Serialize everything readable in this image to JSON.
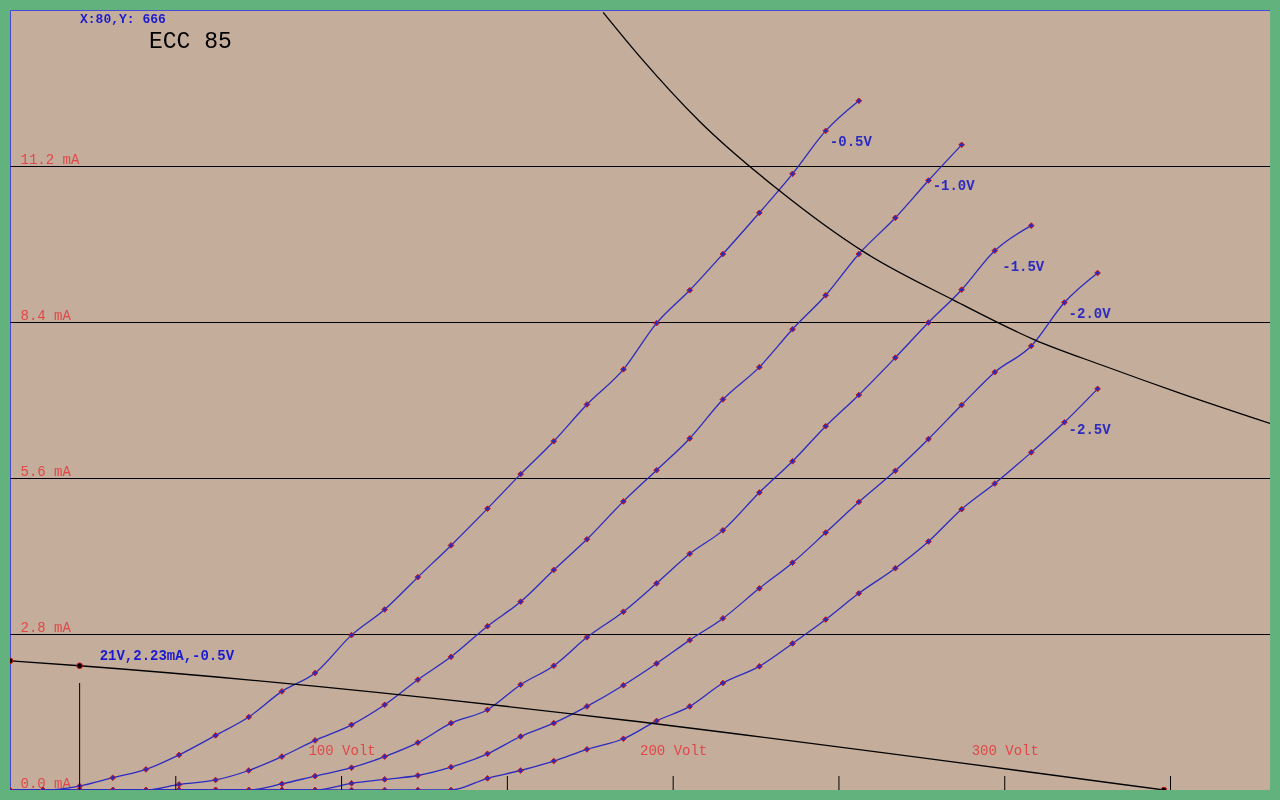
{
  "chart_data": {
    "type": "line",
    "title": "ECC 85",
    "xlim": [
      0,
      380
    ],
    "ylim": [
      0,
      14
    ],
    "xticks": [
      {
        "value": 50,
        "label": null
      },
      {
        "value": 100,
        "label": "100 Volt"
      },
      {
        "value": 150,
        "label": null
      },
      {
        "value": 200,
        "label": "200 Volt"
      },
      {
        "value": 250,
        "label": null
      },
      {
        "value": 300,
        "label": "300 Volt"
      },
      {
        "value": 350,
        "label": null
      }
    ],
    "yticks": [
      {
        "value": 0,
        "label": "0.0 mA"
      },
      {
        "value": 2.8,
        "label": "2.8 mA"
      },
      {
        "value": 5.6,
        "label": "5.6 mA"
      },
      {
        "value": 8.4,
        "label": "8.4 mA"
      },
      {
        "value": 11.2,
        "label": "11.2 mA"
      }
    ],
    "grid": "y",
    "legend": "right",
    "marker": "diamond",
    "line_style": "solid",
    "series": [
      {
        "name": "-0.5V",
        "color": "#2b2bc0",
        "x": [
          0,
          10,
          21,
          31,
          41,
          51,
          62,
          72,
          82,
          92,
          103,
          113,
          123,
          133,
          144,
          154,
          164,
          174,
          185,
          195,
          205,
          215,
          226,
          236,
          246,
          256
        ],
        "values": [
          0,
          0,
          0.07,
          0.22,
          0.37,
          0.63,
          0.98,
          1.31,
          1.77,
          2.1,
          2.78,
          3.24,
          3.82,
          4.39,
          5.05,
          5.67,
          6.26,
          6.92,
          7.55,
          8.38,
          8.97,
          9.62,
          10.36,
          11.06,
          11.83,
          12.37
        ]
      },
      {
        "name": "-1.0V",
        "color": "#2b2bc0",
        "x": [
          0,
          10,
          21,
          31,
          41,
          51,
          62,
          72,
          82,
          92,
          103,
          113,
          123,
          133,
          144,
          154,
          164,
          174,
          185,
          195,
          205,
          215,
          226,
          236,
          246,
          256,
          267,
          277,
          287
        ],
        "values": [
          0,
          0,
          0,
          0,
          0,
          0.1,
          0.18,
          0.35,
          0.6,
          0.89,
          1.17,
          1.53,
          1.98,
          2.39,
          2.94,
          3.38,
          3.95,
          4.5,
          5.18,
          5.74,
          6.31,
          7.01,
          7.59,
          8.27,
          8.88,
          9.62,
          10.27,
          10.94,
          11.58
        ]
      },
      {
        "name": "-1.5V",
        "color": "#2b2bc0",
        "x": [
          0,
          10,
          21,
          31,
          41,
          51,
          62,
          72,
          82,
          92,
          103,
          113,
          123,
          133,
          144,
          154,
          164,
          174,
          185,
          195,
          205,
          215,
          226,
          236,
          246,
          256,
          267,
          277,
          287,
          297,
          308
        ],
        "values": [
          0,
          0,
          0,
          0,
          0,
          0,
          0,
          0,
          0.11,
          0.25,
          0.4,
          0.6,
          0.85,
          1.2,
          1.44,
          1.89,
          2.23,
          2.74,
          3.2,
          3.71,
          4.24,
          4.66,
          5.34,
          5.9,
          6.53,
          7.09,
          7.76,
          8.39,
          8.98,
          9.68,
          10.13
        ]
      },
      {
        "name": "-2.0V",
        "color": "#2b2bc0",
        "x": [
          0,
          10,
          21,
          31,
          41,
          51,
          62,
          72,
          82,
          92,
          103,
          113,
          123,
          133,
          144,
          154,
          164,
          174,
          185,
          195,
          205,
          215,
          226,
          236,
          246,
          256,
          267,
          277,
          287,
          297,
          308,
          318,
          328
        ],
        "values": [
          0,
          0,
          0,
          0,
          0,
          0,
          0,
          0,
          0,
          0,
          0.12,
          0.19,
          0.26,
          0.41,
          0.65,
          0.96,
          1.2,
          1.5,
          1.88,
          2.27,
          2.69,
          3.08,
          3.62,
          4.08,
          4.62,
          5.17,
          5.73,
          6.3,
          6.91,
          7.5,
          7.97,
          8.75,
          9.28
        ]
      },
      {
        "name": "-2.5V",
        "color": "#2b2bc0",
        "x": [
          0,
          10,
          21,
          31,
          41,
          51,
          62,
          72,
          82,
          92,
          103,
          113,
          123,
          133,
          144,
          154,
          164,
          174,
          185,
          195,
          205,
          215,
          226,
          236,
          246,
          256,
          267,
          277,
          287,
          297,
          308,
          318,
          328
        ],
        "values": [
          0,
          0,
          0,
          0,
          0,
          0,
          0,
          0,
          0,
          0,
          0,
          0,
          0,
          0,
          0.21,
          0.35,
          0.52,
          0.73,
          0.92,
          1.24,
          1.5,
          1.92,
          2.22,
          2.63,
          3.06,
          3.53,
          3.98,
          4.46,
          5.04,
          5.5,
          6.06,
          6.6,
          7.2
        ]
      },
      {
        "color": "#000000",
        "marker": "none",
        "x": [
          179,
          190,
          208,
          232,
          258,
          285,
          309,
          330,
          353,
          380
        ],
        "values": [
          13.95,
          13.16,
          12.0,
          10.76,
          9.64,
          8.78,
          8.08,
          7.61,
          7.12,
          6.58
        ]
      },
      {
        "color": "#000000",
        "marker": "circle",
        "x": [
          0,
          21,
          348
        ],
        "values": [
          2.32,
          2.23,
          0
        ]
      }
    ],
    "ref_lines": [
      {
        "axis": "x",
        "value": 21
      }
    ],
    "annotations": [
      {
        "text": "21V,2.23mA,-0.5V",
        "x": 21,
        "y": 2.23
      },
      "X:80,Y: 666"
    ]
  }
}
